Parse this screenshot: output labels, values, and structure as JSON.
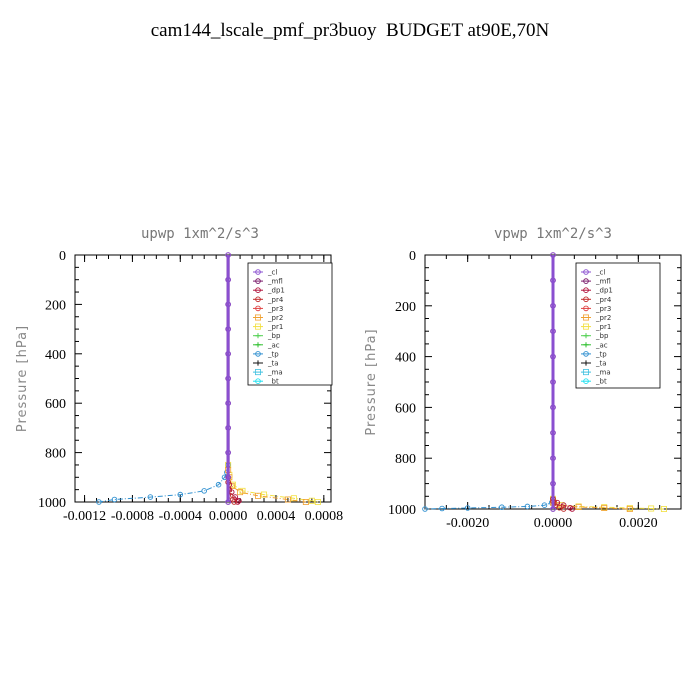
{
  "title": "cam144_lscale_pmf_pr3buoy  BUDGET at90E,70N",
  "legend_entries": [
    "_cl",
    "_mfl",
    "_dp1",
    "_pr4",
    "_pr3",
    "_pr2",
    "_pr1",
    "_bp",
    "_ac",
    "_tp",
    "_ta",
    "_ma",
    "_bt"
  ],
  "series_colors": {
    "_cl": "#8a4fd0",
    "_mfl": "#7a1a6a",
    "_dp1": "#b0103a",
    "_pr4": "#c02828",
    "_pr3": "#e04040",
    "_pr2": "#f0a030",
    "_pr1": "#f2e040",
    "_bp": "#50d050",
    "_ac": "#30c030",
    "_tp": "#3090d0",
    "_ta": "#101010",
    "_ma": "#40c0e0",
    "_bt": "#20e0f0"
  },
  "chart_data": [
    {
      "type": "line",
      "title": "upwp   1xm^2/s^3",
      "ylabel": "Pressure [hPa]",
      "xlabel": "",
      "y_inverted": true,
      "xlim": [
        -0.00128,
        0.00086
      ],
      "ylim": [
        0,
        1000
      ],
      "xticks": [
        -0.0012,
        -0.0008,
        -0.0004,
        0.0,
        0.0004,
        0.0008
      ],
      "xtick_labels": [
        "-0.0012",
        "-0.0008",
        "-0.0004",
        "0.0000",
        "0.0004",
        "0.0008"
      ],
      "yticks": [
        0,
        200,
        400,
        600,
        800,
        1000
      ],
      "ytick_labels": [
        "0",
        "200",
        "400",
        "600",
        "800",
        "1000"
      ],
      "legend_position": "top-right",
      "series": [
        {
          "name": "_tp",
          "x": [
            0,
            -1e-05,
            -3e-05,
            -8e-05,
            -0.0002,
            -0.0004,
            -0.00065,
            -0.00095,
            -0.00108
          ],
          "y": [
            850,
            880,
            900,
            930,
            955,
            970,
            980,
            990,
            1000
          ]
        },
        {
          "name": "_pr1",
          "x": [
            0,
            1e-05,
            4e-05,
            0.00012,
            0.0003,
            0.00055,
            0.0007,
            0.00075
          ],
          "y": [
            850,
            890,
            930,
            955,
            970,
            985,
            995,
            1000
          ]
        },
        {
          "name": "_pr2",
          "x": [
            0,
            1e-05,
            3e-05,
            0.0001,
            0.00025,
            0.0005,
            0.00065
          ],
          "y": [
            870,
            900,
            935,
            960,
            975,
            990,
            1000
          ]
        },
        {
          "name": "_dp1",
          "x": [
            0,
            1e-05,
            3e-05,
            6e-05,
            9e-05,
            8e-05
          ],
          "y": [
            900,
            930,
            960,
            980,
            995,
            1000
          ]
        },
        {
          "name": "_pr4",
          "x": [
            0,
            1e-05,
            2e-05,
            4e-05,
            5e-05
          ],
          "y": [
            920,
            950,
            975,
            990,
            1000
          ]
        },
        {
          "name": "_mfl",
          "x": [
            0,
            0,
            0,
            0,
            0,
            0,
            0,
            0,
            0,
            0,
            0
          ],
          "y": [
            0,
            100,
            200,
            300,
            400,
            500,
            600,
            700,
            800,
            900,
            1000
          ]
        },
        {
          "name": "_cl",
          "x": [
            0,
            0,
            0,
            0,
            0,
            0,
            0,
            0,
            0,
            0,
            0
          ],
          "y": [
            0,
            100,
            200,
            300,
            400,
            500,
            600,
            700,
            800,
            900,
            1000
          ]
        }
      ]
    },
    {
      "type": "line",
      "title": "vpwp   1xm^2/s^3",
      "ylabel": "Pressure [hPa]",
      "xlabel": "",
      "y_inverted": true,
      "xlim": [
        -0.003,
        0.003
      ],
      "ylim": [
        0,
        1000
      ],
      "xticks": [
        -0.002,
        0.0,
        0.002
      ],
      "xtick_labels": [
        "-0.0020",
        "0.0000",
        "0.0020"
      ],
      "yticks": [
        0,
        200,
        400,
        600,
        800,
        1000
      ],
      "ytick_labels": [
        "0",
        "200",
        "400",
        "600",
        "800",
        "1000"
      ],
      "legend_position": "top-right",
      "series": [
        {
          "name": "_tp",
          "x": [
            0,
            -3e-05,
            -0.0002,
            -0.0006,
            -0.0012,
            -0.002,
            -0.0026,
            -0.003
          ],
          "y": [
            960,
            975,
            985,
            990,
            993,
            996,
            998,
            1000
          ]
        },
        {
          "name": "_pr1",
          "x": [
            0,
            2e-05,
            0.0002,
            0.0006,
            0.0012,
            0.0018,
            0.0023,
            0.0026
          ],
          "y": [
            960,
            975,
            985,
            990,
            993,
            996,
            998,
            1000
          ]
        },
        {
          "name": "_pr2",
          "x": [
            0,
            0.0001,
            0.0006,
            0.0012,
            0.0018
          ],
          "y": [
            975,
            985,
            992,
            996,
            1000
          ]
        },
        {
          "name": "_dp1",
          "x": [
            0,
            0.0001,
            0.00025,
            0.0004,
            0.00045
          ],
          "y": [
            960,
            975,
            985,
            995,
            1000
          ]
        },
        {
          "name": "_pr4",
          "x": [
            0,
            5e-05,
            0.00015,
            0.00025
          ],
          "y": [
            970,
            985,
            995,
            1000
          ]
        },
        {
          "name": "_mfl",
          "x": [
            0,
            0,
            0,
            0,
            0,
            0,
            0,
            0,
            0,
            0,
            0
          ],
          "y": [
            0,
            100,
            200,
            300,
            400,
            500,
            600,
            700,
            800,
            900,
            1000
          ]
        },
        {
          "name": "_cl",
          "x": [
            0,
            0,
            0,
            0,
            0,
            0,
            0,
            0,
            0,
            0,
            0
          ],
          "y": [
            0,
            100,
            200,
            300,
            400,
            500,
            600,
            700,
            800,
            900,
            1000
          ]
        }
      ]
    }
  ]
}
